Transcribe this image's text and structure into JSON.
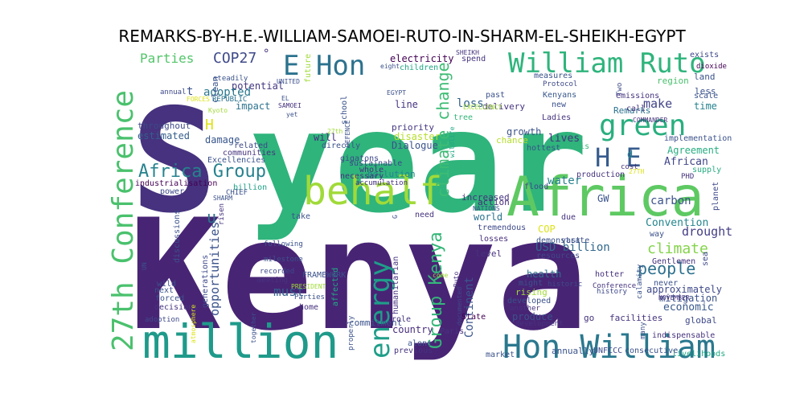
{
  "title": "REMARKS-BY-H.E.-WILLIAM-SAMOEI-RUTO-IN-SHARM-EL-SHEIKH-EGYPT",
  "palette": {
    "dark_purple": "#46327e",
    "purple": "#482475",
    "blue": "#365c8d",
    "teal_blue": "#277f8e",
    "teal": "#1fa187",
    "green": "#4ac16d",
    "light_green": "#a0da39",
    "yellow": "#dde318"
  },
  "words": [
    {
      "text": "Kenya",
      "color": "#482475"
    },
    {
      "text": "year",
      "color": "#2fb47c"
    },
    {
      "text": "S",
      "color": "#46327e"
    },
    {
      "text": "Africa",
      "color": "#5ec962"
    },
    {
      "text": "behalf",
      "color": "#a0da39"
    },
    {
      "text": "million",
      "color": "#1f9a8a"
    },
    {
      "text": "27th Conference",
      "color": "#4ac16d"
    },
    {
      "text": "William Ruto",
      "color": "#2fb47c"
    },
    {
      "text": "Hon William",
      "color": "#2a788e"
    },
    {
      "text": "green",
      "color": "#29af7f"
    },
    {
      "text": "energy",
      "color": "#1f9e89"
    },
    {
      "text": "E Hon",
      "color": "#2c728e"
    },
    {
      "text": "H E",
      "color": "#365c8d"
    },
    {
      "text": "Africa Group",
      "color": "#26828e"
    },
    {
      "text": "Group Kenya",
      "color": "#35b779"
    },
    {
      "text": "climate change",
      "color": "#3dbc74"
    },
    {
      "text": "COP27",
      "color": "#3e4989"
    },
    {
      "text": "Parties",
      "color": "#52c569"
    },
    {
      "text": "opportunities",
      "color": "#3b528b"
    },
    {
      "text": "people",
      "color": "#2d708e"
    },
    {
      "text": "climate",
      "color": "#84d44b"
    },
    {
      "text": "drought",
      "color": "#433e85"
    },
    {
      "text": "USD billion",
      "color": "#31688e"
    },
    {
      "text": "Continent",
      "color": "#3a548c"
    },
    {
      "text": "must",
      "color": "#355f8d"
    },
    {
      "text": "loss",
      "color": "#33638d"
    },
    {
      "text": "make",
      "color": "#414487"
    },
    {
      "text": "electricity",
      "color": "#440154"
    },
    {
      "text": "potential",
      "color": "#453781"
    },
    {
      "text": "adopted",
      "color": "#2a788e"
    },
    {
      "text": "impact",
      "color": "#2c728e"
    },
    {
      "text": "damage",
      "color": "#39568c"
    },
    {
      "text": "estimated",
      "color": "#355f8d"
    },
    {
      "text": "throughout",
      "color": "#3e4989"
    },
    {
      "text": "Agreement",
      "color": "#27ad81"
    },
    {
      "text": "African",
      "color": "#404688"
    },
    {
      "text": "carbon",
      "color": "#3b528b"
    },
    {
      "text": "water",
      "color": "#26828e"
    },
    {
      "text": "lives",
      "color": "#46337e"
    },
    {
      "text": "action",
      "color": "#472d7b"
    },
    {
      "text": "Convention",
      "color": "#24868e"
    },
    {
      "text": "economic",
      "color": "#38588c"
    },
    {
      "text": "mitigation",
      "color": "#3b528b"
    },
    {
      "text": "approximately",
      "color": "#3e4989"
    },
    {
      "text": "health",
      "color": "#2c728e"
    },
    {
      "text": "commitment",
      "color": "#3b528b"
    },
    {
      "text": "country",
      "color": "#472d7b"
    },
    {
      "text": "global",
      "color": "#3e4989"
    },
    {
      "text": "annually",
      "color": "#3a548c"
    },
    {
      "text": "State",
      "color": "#440154"
    },
    {
      "text": "produce",
      "color": "#3b528b"
    },
    {
      "text": "developed",
      "color": "#3b528b"
    },
    {
      "text": "level",
      "color": "#46337e"
    },
    {
      "text": "world",
      "color": "#2c728e"
    },
    {
      "text": "tremendous",
      "color": "#3e4989"
    },
    {
      "text": "losses",
      "color": "#472d7b"
    },
    {
      "text": "increased",
      "color": "#46327e"
    },
    {
      "text": "disaster",
      "color": "#b5de2b"
    },
    {
      "text": "Dialogue",
      "color": "#3b528b"
    },
    {
      "text": "priority",
      "color": "#453781"
    },
    {
      "text": "sustainable",
      "color": "#3e4989"
    },
    {
      "text": "pollution",
      "color": "#25848e"
    },
    {
      "text": "growth",
      "color": "#3b528b"
    },
    {
      "text": "chance",
      "color": "#b5de2b"
    },
    {
      "text": "Kenyans",
      "color": "#38588c"
    },
    {
      "text": "Remarks",
      "color": "#2c728e"
    },
    {
      "text": "Ladies",
      "color": "#46337e"
    },
    {
      "text": "crisis",
      "color": "#35b779"
    },
    {
      "text": "region",
      "color": "#4ac16d"
    },
    {
      "text": "land",
      "color": "#3b528b"
    },
    {
      "text": "time",
      "color": "#26828e"
    },
    {
      "text": "supply",
      "color": "#26ad81"
    },
    {
      "text": "planet",
      "color": "#3e4989"
    },
    {
      "text": "GW",
      "color": "#3b528b"
    },
    {
      "text": "u",
      "color": "#2c728e"
    },
    {
      "text": "H",
      "color": "#dde318"
    },
    {
      "text": "t",
      "color": "#3b528b"
    },
    {
      "text": "clean",
      "color": "#3b528b"
    },
    {
      "text": "industrialisation",
      "color": "#440154"
    },
    {
      "text": "power",
      "color": "#3e4989"
    },
    {
      "text": "gigatons",
      "color": "#3e4989"
    },
    {
      "text": "billion",
      "color": "#1fa187"
    },
    {
      "text": "necessary",
      "color": "#46327e"
    },
    {
      "text": "Excellencies",
      "color": "#3b528b"
    },
    {
      "text": "communities",
      "color": "#46337e"
    },
    {
      "text": "related",
      "color": "#3e4989"
    },
    {
      "text": "directly",
      "color": "#3b528b"
    },
    {
      "text": "will",
      "color": "#46327e"
    },
    {
      "text": "school",
      "color": "#3b528b"
    },
    {
      "text": "future",
      "color": "#a0da39"
    },
    {
      "text": "REPUBLIC",
      "color": "#2c728e"
    },
    {
      "text": "steadily",
      "color": "#3b528b"
    },
    {
      "text": "children",
      "color": "#22a884"
    },
    {
      "text": "spend",
      "color": "#46337e"
    },
    {
      "text": "measures",
      "color": "#3b528b"
    },
    {
      "text": "Protocol",
      "color": "#3e4989"
    },
    {
      "text": "past",
      "color": "#3b528b"
    },
    {
      "text": "new",
      "color": "#3b528b"
    },
    {
      "text": "call",
      "color": "#46337e"
    },
    {
      "text": "less",
      "color": "#3b528b"
    },
    {
      "text": "scale",
      "color": "#3b528b"
    },
    {
      "text": "exists",
      "color": "#3e4989"
    },
    {
      "text": "dioxide",
      "color": "#440154"
    },
    {
      "text": "emissions",
      "color": "#46337e"
    },
    {
      "text": "COMMANDER",
      "color": "#46327e"
    },
    {
      "text": "implementation",
      "color": "#3b528b"
    },
    {
      "text": "hottest",
      "color": "#3b528b"
    },
    {
      "text": "delivery",
      "color": "#46337e"
    },
    {
      "text": "line",
      "color": "#46327e"
    },
    {
      "text": "tree",
      "color": "#35b779"
    },
    {
      "text": "flood",
      "color": "#3e4989"
    },
    {
      "text": "production",
      "color": "#46337e"
    },
    {
      "text": "cost",
      "color": "#46327e"
    },
    {
      "text": "PHD",
      "color": "#46337e"
    },
    {
      "text": "due",
      "color": "#46327e"
    },
    {
      "text": "vast",
      "color": "#3b528b"
    },
    {
      "text": "way",
      "color": "#3b528b"
    },
    {
      "text": "COP",
      "color": "#dde318"
    },
    {
      "text": "demonstrate",
      "color": "#3b528b"
    },
    {
      "text": "resources",
      "color": "#3e4989"
    },
    {
      "text": "historic",
      "color": "#3e4989"
    },
    {
      "text": "might",
      "color": "#3b528b"
    },
    {
      "text": "hotter",
      "color": "#46327e"
    },
    {
      "text": "history",
      "color": "#3e4989"
    },
    {
      "text": "Conference",
      "color": "#46337e"
    },
    {
      "text": "rising",
      "color": "#a0da39"
    },
    {
      "text": "another",
      "color": "#46327e"
    },
    {
      "text": "development",
      "color": "#46337e"
    },
    {
      "text": "go",
      "color": "#46327e"
    },
    {
      "text": "facilities",
      "color": "#46337e"
    },
    {
      "text": "indispensable",
      "color": "#46337e"
    },
    {
      "text": "Gentlemen",
      "color": "#46327e"
    },
    {
      "text": "never",
      "color": "#3b528b"
    },
    {
      "text": "NOVEMBER",
      "color": "#46327e"
    },
    {
      "text": "sea",
      "color": "#3e4989"
    },
    {
      "text": "calamity",
      "color": "#3b528b"
    },
    {
      "text": "livelihoods",
      "color": "#22a884"
    },
    {
      "text": "UNFCCC",
      "color": "#3e4989"
    },
    {
      "text": "consecutive",
      "color": "#3b528b"
    },
    {
      "text": "many",
      "color": "#3b528b"
    },
    {
      "text": "market",
      "color": "#3b528b"
    },
    {
      "text": "documented",
      "color": "#3e4989"
    },
    {
      "text": "alone",
      "color": "#3b528b"
    },
    {
      "text": "previous",
      "color": "#46327e"
    },
    {
      "text": "Paris",
      "color": "#46337e"
    },
    {
      "text": "role",
      "color": "#46327e"
    },
    {
      "text": "humanitarian",
      "color": "#46327e"
    },
    {
      "text": "affected",
      "color": "#22a884"
    },
    {
      "text": "FRAMEWORK",
      "color": "#3b528b"
    },
    {
      "text": "meeting",
      "color": "#46337e"
    },
    {
      "text": "recorded",
      "color": "#3e4989"
    },
    {
      "text": "milestone",
      "color": "#3b528b"
    },
    {
      "text": "following",
      "color": "#3b528b"
    },
    {
      "text": "home",
      "color": "#46327e"
    },
    {
      "text": "Parties",
      "color": "#3b528b"
    },
    {
      "text": "PRESIDENT",
      "color": "#a0da39"
    },
    {
      "text": "take",
      "color": "#3b528b"
    },
    {
      "text": "need",
      "color": "#46327e"
    },
    {
      "text": "generations",
      "color": "#3e4989"
    },
    {
      "text": "discussions",
      "color": "#3b528b"
    },
    {
      "text": "wild",
      "color": "#3b528b"
    },
    {
      "text": "forced",
      "color": "#3b528b"
    },
    {
      "text": "decisions",
      "color": "#46327e"
    },
    {
      "text": "next",
      "color": "#3b528b"
    },
    {
      "text": "adoption",
      "color": "#3e4989"
    },
    {
      "text": "atmosphere",
      "color": "#dde318"
    },
    {
      "text": "together",
      "color": "#3b528b"
    },
    {
      "text": "risen",
      "color": "#46337e"
    },
    {
      "text": "CHIEF",
      "color": "#3b528b"
    },
    {
      "text": "SHARM",
      "color": "#3b528b"
    },
    {
      "text": "accumulation",
      "color": "#46337e"
    },
    {
      "text": "whole",
      "color": "#46327e"
    },
    {
      "text": "wildlife",
      "color": "#22a884"
    },
    {
      "text": "UN",
      "color": "#3b528b"
    },
    {
      "text": "Two",
      "color": "#3e4989"
    },
    {
      "text": "Kyoto",
      "color": "#a0da39"
    },
    {
      "text": "FORCES",
      "color": "#dde318"
    },
    {
      "text": "annual",
      "color": "#3e4989"
    },
    {
      "text": "UNITED",
      "color": "#3b528b"
    },
    {
      "text": "SAMOEI",
      "color": "#46327e"
    },
    {
      "text": "yet",
      "color": "#3b528b"
    },
    {
      "text": "EL",
      "color": "#3b528b"
    },
    {
      "text": "EGYPT",
      "color": "#3b528b"
    },
    {
      "text": "eight",
      "color": "#3b528b"
    },
    {
      "text": "SHEIKH",
      "color": "#46337e"
    },
    {
      "text": "27th",
      "color": "#a0da39"
    },
    {
      "text": "DEFENCE",
      "color": "#3b528b"
    },
    {
      "text": "EXCELLENCY",
      "color": "#a0da39"
    },
    {
      "text": "NATIONS",
      "color": "#3b528b"
    },
    {
      "text": "properly",
      "color": "#3b528b"
    },
    {
      "text": "Ruto",
      "color": "#46337e"
    },
    {
      "text": "G",
      "color": "#3b528b"
    },
    {
      "text": "d",
      "color": "#26828e"
    },
    {
      "text": "come",
      "color": "#a0da39"
    },
    {
      "text": "27TH",
      "color": "#dde318"
    },
    {
      "text": "°",
      "color": "#46327e"
    }
  ]
}
